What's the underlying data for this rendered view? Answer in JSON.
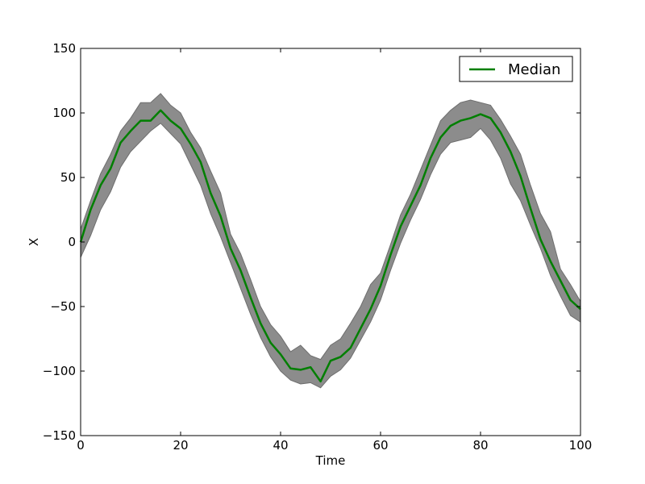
{
  "chart_data": {
    "type": "line",
    "title": "",
    "xlabel": "Time",
    "ylabel": "X",
    "xlim": [
      0,
      100
    ],
    "ylim": [
      -150,
      150
    ],
    "xticks": [
      0,
      20,
      40,
      60,
      80,
      100
    ],
    "yticks": [
      -150,
      -100,
      -50,
      0,
      50,
      100,
      150
    ],
    "xtick_labels": [
      "0",
      "20",
      "40",
      "60",
      "80",
      "100"
    ],
    "ytick_labels": [
      "−150",
      "−100",
      "−50",
      "0",
      "50",
      "100",
      "150"
    ],
    "grid": false,
    "legend": {
      "position": "top-right",
      "entries": [
        "Median"
      ]
    },
    "colors": {
      "median": "#007f00",
      "band_fill": "#8c8c8c",
      "band_edge": "#6e6e6e"
    },
    "x": [
      0,
      2,
      4,
      6,
      8,
      10,
      12,
      14,
      16,
      18,
      20,
      22,
      24,
      26,
      28,
      30,
      32,
      34,
      36,
      38,
      40,
      42,
      44,
      46,
      48,
      50,
      52,
      54,
      56,
      58,
      60,
      62,
      64,
      66,
      68,
      70,
      72,
      74,
      76,
      78,
      80,
      82,
      84,
      86,
      88,
      90,
      92,
      94,
      96,
      98,
      100
    ],
    "series": [
      {
        "name": "Median",
        "values": [
          0,
          25,
          44,
          57,
          77,
          86,
          94,
          94,
          102,
          94,
          88,
          76,
          62,
          38,
          20,
          -5,
          -22,
          -43,
          -63,
          -78,
          -87,
          -98,
          -99,
          -97,
          -108,
          -92,
          -89,
          -82,
          -67,
          -52,
          -34,
          -10,
          12,
          28,
          44,
          65,
          81,
          90,
          94,
          96,
          99,
          96,
          85,
          70,
          51,
          26,
          2,
          -15,
          -30,
          -45,
          -52
        ],
        "lower": [
          -12,
          5,
          25,
          39,
          58,
          70,
          78,
          86,
          92,
          84,
          76,
          60,
          44,
          22,
          4,
          -16,
          -36,
          -56,
          -74,
          -89,
          -100,
          -107,
          -110,
          -109,
          -113,
          -104,
          -99,
          -90,
          -76,
          -62,
          -45,
          -22,
          -1,
          17,
          33,
          52,
          68,
          77,
          79,
          81,
          88,
          79,
          65,
          45,
          32,
          13,
          -5,
          -26,
          -42,
          -57,
          -62
        ],
        "upper": [
          10,
          32,
          53,
          68,
          86,
          96,
          108,
          108,
          115,
          106,
          100,
          85,
          73,
          55,
          38,
          6,
          -9,
          -29,
          -50,
          -64,
          -73,
          -85,
          -80,
          -88,
          -91,
          -80,
          -75,
          -63,
          -50,
          -33,
          -24,
          -2,
          21,
          37,
          56,
          75,
          94,
          102,
          108,
          110,
          108,
          106,
          95,
          82,
          68,
          44,
          22,
          8,
          -21,
          -33,
          -46
        ]
      }
    ]
  }
}
